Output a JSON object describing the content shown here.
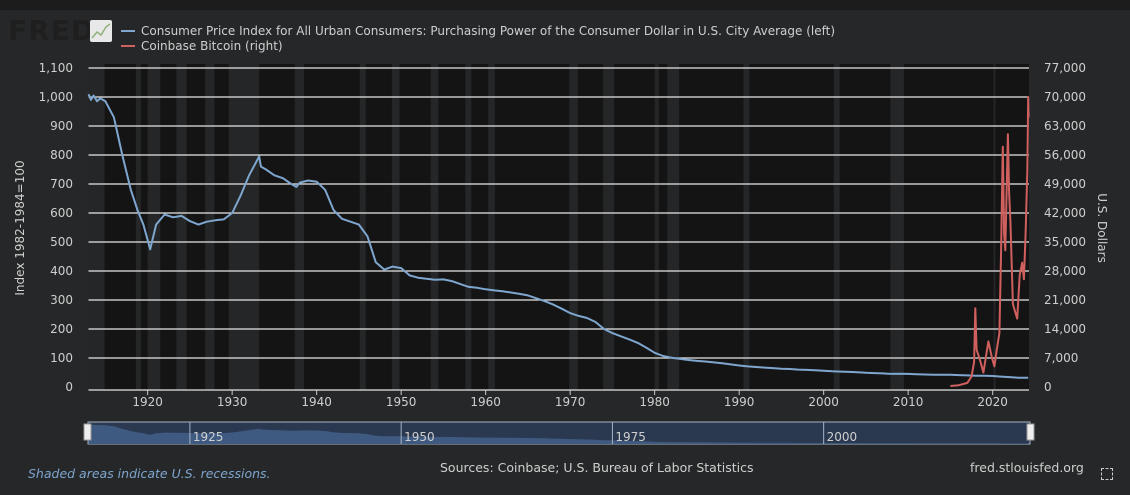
{
  "logo": "FRED",
  "chart_data": {
    "type": "line",
    "title": "",
    "xlabel": "",
    "ylabel_left": "Index 1982-1984=100",
    "ylabel_right": "U.S. Dollars",
    "xlim": [
      1913,
      2024.3
    ],
    "ylim_left": [
      0,
      1100
    ],
    "ylim_right": [
      0,
      77000
    ],
    "grid": true,
    "legend_position": "top-left",
    "x_ticks": [
      "1920",
      "1930",
      "1940",
      "1950",
      "1960",
      "1970",
      "1980",
      "1990",
      "2000",
      "2010",
      "2020"
    ],
    "y_ticks_left": [
      "0",
      "100",
      "200",
      "300",
      "400",
      "500",
      "600",
      "700",
      "800",
      "900",
      "1,000",
      "1,100"
    ],
    "y_ticks_right": [
      "0",
      "7,000",
      "14,000",
      "21,000",
      "28,000",
      "35,000",
      "42,000",
      "49,000",
      "56,000",
      "63,000",
      "70,000",
      "77,000"
    ],
    "recessions": [
      [
        1913.0,
        1914.9
      ],
      [
        1918.6,
        1919.2
      ],
      [
        1920.0,
        1921.5
      ],
      [
        1923.4,
        1924.6
      ],
      [
        1926.8,
        1927.9
      ],
      [
        1929.6,
        1933.2
      ],
      [
        1937.4,
        1938.5
      ],
      [
        1945.1,
        1945.8
      ],
      [
        1948.9,
        1949.8
      ],
      [
        1953.5,
        1954.4
      ],
      [
        1957.6,
        1958.3
      ],
      [
        1960.3,
        1961.1
      ],
      [
        1969.9,
        1970.9
      ],
      [
        1973.9,
        1975.2
      ],
      [
        1980.0,
        1980.5
      ],
      [
        1981.5,
        1982.9
      ],
      [
        1990.5,
        1991.2
      ],
      [
        2001.2,
        2001.9
      ],
      [
        2007.9,
        2009.5
      ],
      [
        2020.1,
        2020.3
      ]
    ],
    "series": [
      {
        "name": "Consumer Price Index for All Urban Consumers: Purchasing Power of the Consumer Dollar in U.S. City Average (left)",
        "color": "#7ea6cf",
        "axis": "left",
        "points": [
          [
            1913,
            1010
          ],
          [
            1913.3,
            990
          ],
          [
            1913.6,
            1005
          ],
          [
            1914,
            985
          ],
          [
            1914.4,
            995
          ],
          [
            1915,
            985
          ],
          [
            1916,
            930
          ],
          [
            1917,
            800
          ],
          [
            1918,
            680
          ],
          [
            1918.8,
            610
          ],
          [
            1919.5,
            560
          ],
          [
            1920.3,
            475
          ],
          [
            1921,
            560
          ],
          [
            1922,
            595
          ],
          [
            1923,
            585
          ],
          [
            1924,
            590
          ],
          [
            1925,
            572
          ],
          [
            1926,
            560
          ],
          [
            1927,
            570
          ],
          [
            1928,
            575
          ],
          [
            1929,
            578
          ],
          [
            1930,
            600
          ],
          [
            1931,
            660
          ],
          [
            1932,
            730
          ],
          [
            1933.2,
            795
          ],
          [
            1933.4,
            760
          ],
          [
            1934,
            750
          ],
          [
            1935,
            730
          ],
          [
            1936,
            720
          ],
          [
            1937,
            700
          ],
          [
            1937.6,
            690
          ],
          [
            1938,
            705
          ],
          [
            1939,
            712
          ],
          [
            1940,
            708
          ],
          [
            1941,
            680
          ],
          [
            1942,
            610
          ],
          [
            1943,
            580
          ],
          [
            1944,
            570
          ],
          [
            1945,
            560
          ],
          [
            1946,
            520
          ],
          [
            1947,
            430
          ],
          [
            1948,
            405
          ],
          [
            1949,
            415
          ],
          [
            1950,
            410
          ],
          [
            1951,
            385
          ],
          [
            1952,
            377
          ],
          [
            1953,
            373
          ],
          [
            1954,
            370
          ],
          [
            1955,
            371
          ],
          [
            1956,
            365
          ],
          [
            1957,
            355
          ],
          [
            1958,
            345
          ],
          [
            1959,
            342
          ],
          [
            1960,
            337
          ],
          [
            1961,
            333
          ],
          [
            1962,
            330
          ],
          [
            1963,
            326
          ],
          [
            1964,
            321
          ],
          [
            1965,
            316
          ],
          [
            1966,
            306
          ],
          [
            1967,
            296
          ],
          [
            1968,
            284
          ],
          [
            1969,
            270
          ],
          [
            1970,
            255
          ],
          [
            1971,
            245
          ],
          [
            1972,
            238
          ],
          [
            1973,
            224
          ],
          [
            1974,
            200
          ],
          [
            1975,
            186
          ],
          [
            1976,
            175
          ],
          [
            1977,
            164
          ],
          [
            1978,
            152
          ],
          [
            1979,
            136
          ],
          [
            1980,
            118
          ],
          [
            1981,
            107
          ],
          [
            1982,
            101
          ],
          [
            1983,
            97
          ],
          [
            1984,
            93
          ],
          [
            1985,
            90
          ],
          [
            1986,
            88
          ],
          [
            1987,
            85
          ],
          [
            1988,
            82
          ],
          [
            1989,
            78
          ],
          [
            1990,
            74
          ],
          [
            1991,
            71
          ],
          [
            1992,
            69
          ],
          [
            1993,
            67
          ],
          [
            1994,
            65
          ],
          [
            1995,
            63
          ],
          [
            1996,
            62
          ],
          [
            1997,
            60
          ],
          [
            1998,
            59
          ],
          [
            1999,
            58
          ],
          [
            2000,
            56
          ],
          [
            2001,
            54
          ],
          [
            2002,
            53
          ],
          [
            2003,
            52
          ],
          [
            2004,
            51
          ],
          [
            2005,
            49
          ],
          [
            2006,
            48
          ],
          [
            2007,
            47
          ],
          [
            2008,
            45
          ],
          [
            2009,
            46
          ],
          [
            2010,
            45
          ],
          [
            2011,
            44
          ],
          [
            2012,
            43
          ],
          [
            2013,
            42
          ],
          [
            2014,
            42
          ],
          [
            2015,
            42
          ],
          [
            2016,
            41
          ],
          [
            2017,
            40
          ],
          [
            2018,
            39
          ],
          [
            2019,
            39
          ],
          [
            2020,
            38
          ],
          [
            2021,
            36
          ],
          [
            2022,
            34
          ],
          [
            2023,
            32
          ],
          [
            2024.2,
            32
          ]
        ]
      },
      {
        "name": "Coinbase Bitcoin (right)",
        "color": "#d0605e",
        "axis": "right",
        "points": [
          [
            2015,
            250
          ],
          [
            2016,
            430
          ],
          [
            2017,
            1000
          ],
          [
            2017.5,
            2500
          ],
          [
            2017.8,
            6000
          ],
          [
            2017.95,
            19000
          ],
          [
            2018.1,
            9000
          ],
          [
            2018.5,
            6500
          ],
          [
            2018.9,
            3500
          ],
          [
            2019.5,
            11000
          ],
          [
            2019.9,
            7200
          ],
          [
            2020.2,
            5000
          ],
          [
            2020.5,
            9200
          ],
          [
            2020.8,
            13000
          ],
          [
            2021.0,
            33000
          ],
          [
            2021.2,
            58000
          ],
          [
            2021.35,
            37000
          ],
          [
            2021.5,
            33000
          ],
          [
            2021.8,
            61000
          ],
          [
            2021.95,
            47000
          ],
          [
            2022.1,
            40000
          ],
          [
            2022.4,
            20000
          ],
          [
            2022.9,
            16500
          ],
          [
            2023.2,
            27000
          ],
          [
            2023.5,
            30000
          ],
          [
            2023.7,
            26000
          ],
          [
            2023.9,
            37000
          ],
          [
            2024.1,
            52000
          ],
          [
            2024.2,
            70000
          ],
          [
            2024.25,
            65000
          ]
        ]
      }
    ],
    "navigator_labels": [
      "1925",
      "1950",
      "1975",
      "2000"
    ]
  },
  "footer": {
    "recession_note": "Shaded areas indicate U.S. recessions.",
    "sources": "Sources: Coinbase; U.S. Bureau of Labor Statistics",
    "site": "fred.stlouisfed.org"
  }
}
